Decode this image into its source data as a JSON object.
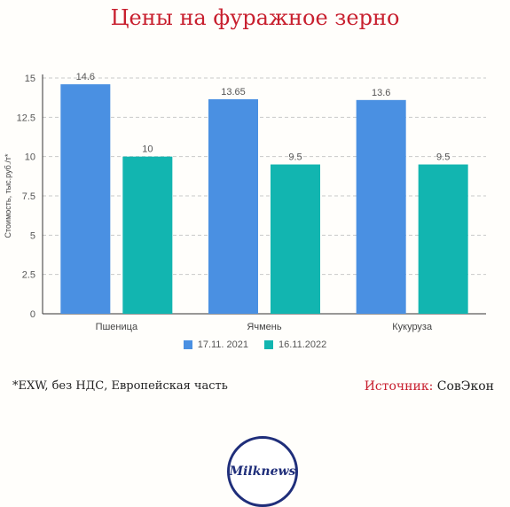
{
  "title": "Цены на фуражное зерно",
  "chart_data": {
    "type": "bar",
    "categories": [
      "Пшеница",
      "Ячмень",
      "Кукуруза"
    ],
    "series": [
      {
        "name": "17.11. 2021",
        "values": [
          14.6,
          13.65,
          13.6
        ],
        "color": "#4a90e2"
      },
      {
        "name": "16.11.2022",
        "values": [
          10,
          9.5,
          9.5
        ],
        "color": "#12b5b0"
      }
    ],
    "data_labels": [
      [
        "14.6",
        "13.65",
        "13.6"
      ],
      [
        "10",
        "9.5",
        "9.5"
      ]
    ],
    "xlabel": "",
    "ylabel": "Стоимость, тыс.руб./т*",
    "ylim": [
      0,
      15
    ],
    "yticks": [
      "0",
      "2.5",
      "5",
      "7.5",
      "10",
      "12.5",
      "15"
    ],
    "grid": true,
    "legend_position": "bottom"
  },
  "footnote": "*EXW, без НДС, Европейская часть",
  "source": {
    "label": "Источник:",
    "value": "СовЭкон"
  },
  "logo_text": "Milknews"
}
